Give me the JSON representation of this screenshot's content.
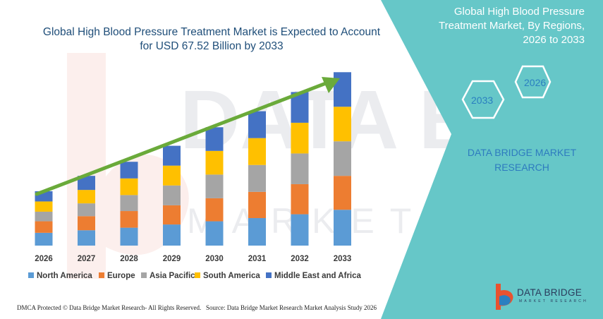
{
  "title": "Global High Blood Pressure Treatment Market is Expected to Account for USD 67.52 Billion by 2033",
  "right_panel": {
    "title": "Global High Blood Pressure Treatment Market, By Regions, 2026 to 2033",
    "hex_labels": [
      "2026",
      "2033"
    ],
    "brand": "DATA BRIDGE MARKET RESEARCH"
  },
  "footer": {
    "left": "DMCA Protected © Data Bridge Market Research- All Rights Reserved.",
    "source": "Source: Data Bridge Market Research Market Analysis Study 2026"
  },
  "logo": {
    "name": "DATA BRIDGE",
    "tagline": "MARKET RESEARCH"
  },
  "watermark": {
    "line1": "DATA BRIDGE",
    "line2": "MARKET RESEARCH"
  },
  "colors": {
    "panel": "#66c7c8",
    "arrow": "#6aaa3a",
    "title_text": "#1f4e79",
    "brand_text": "#2e7bbf"
  },
  "chart_data": {
    "type": "bar",
    "stacked": true,
    "categories": [
      "2026",
      "2027",
      "2028",
      "2029",
      "2030",
      "2031",
      "2032",
      "2033"
    ],
    "series": [
      {
        "name": "North America",
        "color": "#5b9bd5",
        "values": [
          2.0,
          2.4,
          2.8,
          3.3,
          3.8,
          4.3,
          4.9,
          5.6
        ]
      },
      {
        "name": "Europe",
        "color": "#ed7d31",
        "values": [
          1.8,
          2.2,
          2.6,
          3.0,
          3.6,
          4.1,
          4.7,
          5.3
        ]
      },
      {
        "name": "Asia Pacific",
        "color": "#a5a5a5",
        "values": [
          1.5,
          2.0,
          2.5,
          3.1,
          3.7,
          4.2,
          4.8,
          5.4
        ]
      },
      {
        "name": "South America",
        "color": "#ffc000",
        "values": [
          1.6,
          2.1,
          2.6,
          3.1,
          3.7,
          4.2,
          4.8,
          5.4
        ]
      },
      {
        "name": "Middle East and Africa",
        "color": "#4472c4",
        "values": [
          1.6,
          2.2,
          2.6,
          3.1,
          3.7,
          4.2,
          4.8,
          5.4
        ]
      }
    ],
    "ylim": [
      0,
      30
    ],
    "grid": false,
    "legend_position": "bottom"
  }
}
